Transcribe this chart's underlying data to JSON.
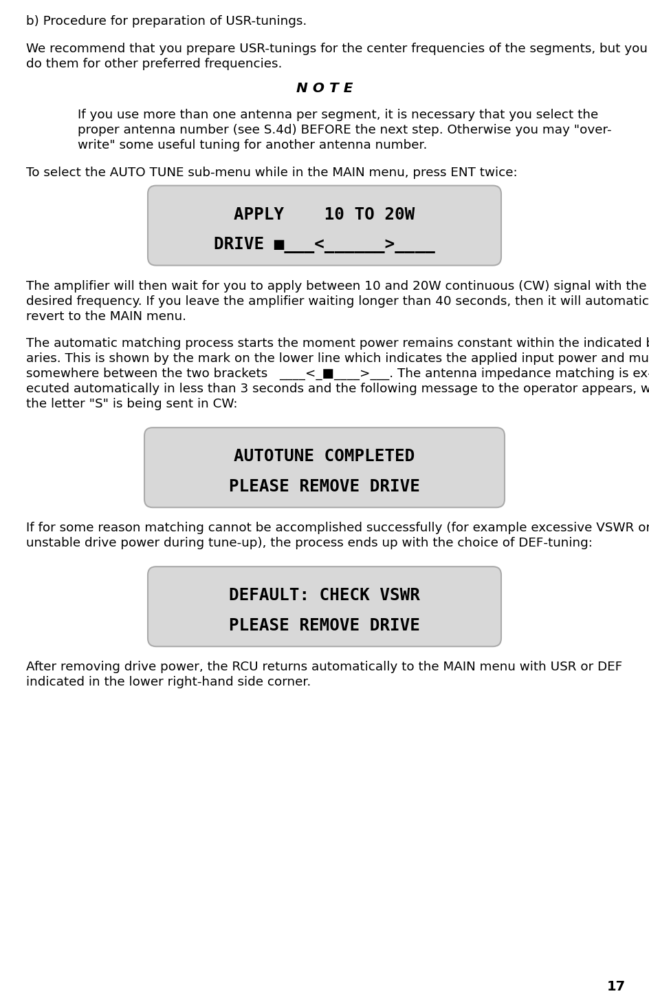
{
  "title": "b) Procedure for preparation of USR-tunings.",
  "bg_color": "#ffffff",
  "text_color": "#000000",
  "page_number": "17",
  "para1": "We recommend that you prepare USR-tunings for the center frequencies of the segments, but you can\ndo them for other preferred frequencies.",
  "note_title": "N O T E",
  "note_text_line1": "If you use more than one antenna per segment, it is necessary that you select the",
  "note_text_line2": "proper antenna number (see S.4d) BEFORE the next step. Otherwise you may \"over-",
  "note_text_line3": "write\" some useful tuning for another antenna number.",
  "para2": "To select the AUTO TUNE sub-menu while in the MAIN menu, press ENT twice:",
  "lcd1_line1": "APPLY    10 TO 20W",
  "lcd1_line2": "DRIVE ■___<______>____",
  "para3_line1": "The amplifier will then wait for you to apply between 10 and 20W continuous (CW) signal with the",
  "para3_line2": "desired frequency. If you leave the amplifier waiting longer than 40 seconds, then it will automatically",
  "para3_line3": "revert to the MAIN menu.",
  "para4_line1": "The automatic matching process starts the moment power remains constant within the indicated bound-",
  "para4_line2": "aries. This is shown by the mark on the lower line which indicates the applied input power and must be",
  "para4_line3": "somewhere between the two brackets   ____<_■____>___. The antenna impedance matching is ex-",
  "para4_line4": "ecuted automatically in less than 3 seconds and the following message to the operator appears, while",
  "para4_line5": "the letter \"S\" is being sent in CW:",
  "lcd2_line1": "AUTOTUNE COMPLETED",
  "lcd2_line2": "PLEASE REMOVE DRIVE",
  "para5_line1": "If for some reason matching cannot be accomplished successfully (for example excessive VSWR or",
  "para5_line2": "unstable drive power during tune-up), the process ends up with the choice of DEF-tuning:",
  "lcd3_line1": "DEFAULT: CHECK VSWR",
  "lcd3_line2": "PLEASE REMOVE DRIVE",
  "para6_line1": "After removing drive power, the RCU returns automatically to the MAIN menu with USR or DEF",
  "para6_line2": "indicated in the lower right-hand side corner.",
  "lcd_bg": "#d8d8d8",
  "lcd_text_color": "#000000",
  "lcd_border_color": "#aaaaaa",
  "body_fs": 13.2,
  "note_title_fs": 14.5,
  "lcd_fs": 17.5,
  "page_num_fs": 14
}
